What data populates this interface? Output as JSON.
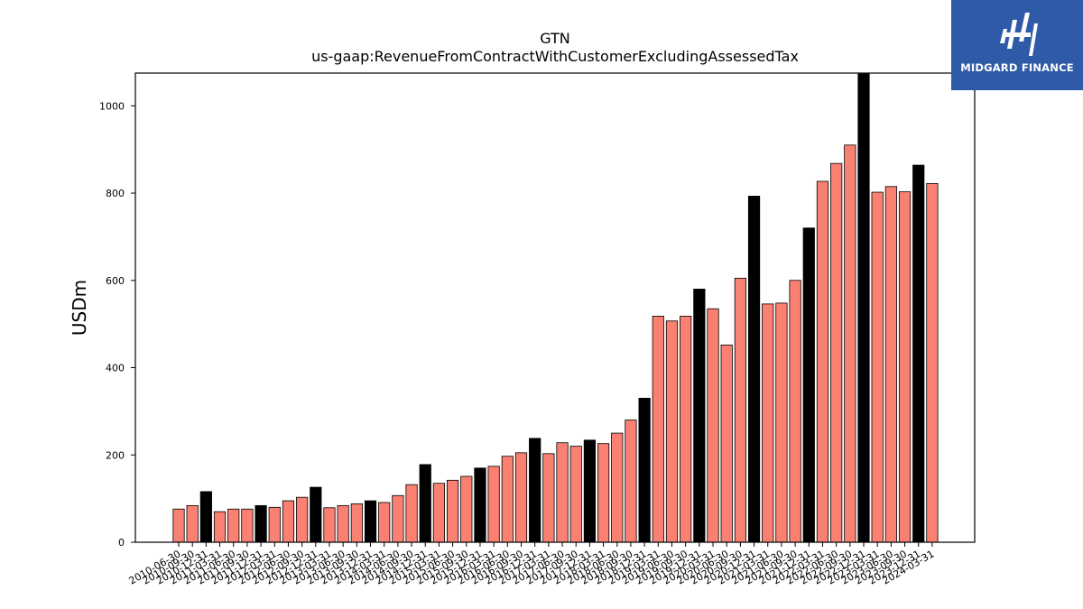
{
  "logo": {
    "text": "MIDGARD FINANCE"
  },
  "chart_data": {
    "type": "bar",
    "title": "GTN",
    "subtitle": "us-gaap:RevenueFromContractWithCustomerExcludingAssessedTax",
    "xlabel": "",
    "ylabel": "USDm",
    "ylim": [
      0,
      1075
    ],
    "yticks": [
      0,
      200,
      400,
      600,
      800,
      1000
    ],
    "grid": false,
    "colors": {
      "quarter": "#fa8072",
      "year_end": "#000000"
    },
    "categories": [
      "2010-06-30",
      "2010-09-30",
      "2010-12-31",
      "2011-03-31",
      "2011-06-30",
      "2011-09-30",
      "2011-12-31",
      "2012-03-31",
      "2012-06-30",
      "2012-09-30",
      "2012-12-31",
      "2013-03-31",
      "2013-06-30",
      "2013-09-30",
      "2013-12-31",
      "2014-03-31",
      "2014-06-30",
      "2014-09-30",
      "2014-12-31",
      "2015-03-31",
      "2015-06-30",
      "2015-09-30",
      "2015-12-31",
      "2016-03-31",
      "2016-06-30",
      "2016-09-30",
      "2016-12-31",
      "2017-03-31",
      "2017-06-30",
      "2017-09-30",
      "2017-12-31",
      "2018-03-31",
      "2018-06-30",
      "2018-09-30",
      "2018-12-31",
      "2019-03-31",
      "2019-06-30",
      "2019-09-30",
      "2019-12-31",
      "2020-03-31",
      "2020-06-30",
      "2020-09-30",
      "2020-12-31",
      "2021-03-31",
      "2021-06-30",
      "2021-09-30",
      "2021-12-31",
      "2022-03-31",
      "2022-06-30",
      "2022-09-30",
      "2022-12-31",
      "2023-03-31",
      "2023-06-30",
      "2023-09-30",
      "2023-12-31",
      "2024-03-31"
    ],
    "values": [
      76,
      84,
      116,
      70,
      76,
      76,
      84,
      80,
      95,
      103,
      126,
      79,
      84,
      88,
      95,
      91,
      107,
      132,
      178,
      135,
      142,
      151,
      170,
      174,
      197,
      205,
      238,
      203,
      228,
      220,
      234,
      226,
      250,
      280,
      330,
      518,
      507,
      518,
      580,
      535,
      452,
      605,
      793,
      546,
      548,
      600,
      720,
      827,
      868,
      910,
      1073,
      802,
      815,
      803,
      864,
      822
    ],
    "year_end": [
      false,
      false,
      true,
      false,
      false,
      false,
      true,
      false,
      false,
      false,
      true,
      false,
      false,
      false,
      true,
      false,
      false,
      false,
      true,
      false,
      false,
      false,
      true,
      false,
      false,
      false,
      true,
      false,
      false,
      false,
      true,
      false,
      false,
      false,
      true,
      false,
      false,
      false,
      true,
      false,
      false,
      false,
      true,
      false,
      false,
      false,
      true,
      false,
      false,
      false,
      true,
      false,
      false,
      false,
      true,
      false
    ]
  }
}
